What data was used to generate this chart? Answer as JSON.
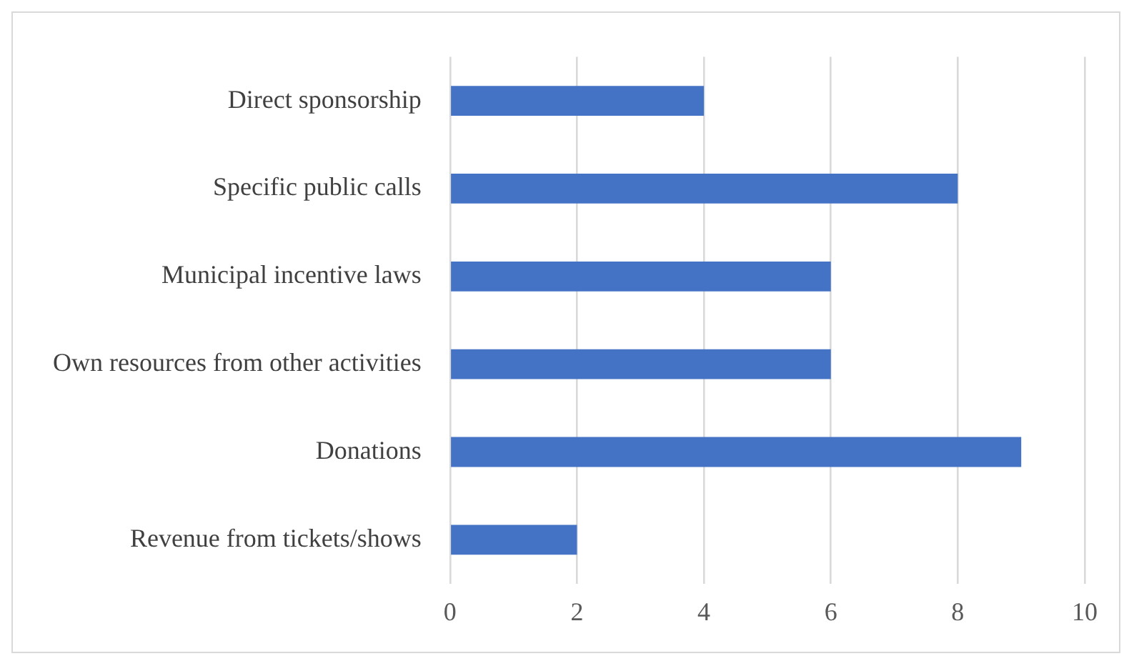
{
  "chart_data": {
    "type": "bar",
    "orientation": "horizontal",
    "categories": [
      "Direct sponsorship",
      "Specific public calls",
      "Municipal incentive laws",
      "Own resources from other activities",
      "Donations",
      "Revenue from tickets/shows"
    ],
    "values": [
      4,
      8,
      6,
      6,
      9,
      2
    ],
    "color": "#4472c4",
    "xlim": [
      0,
      10
    ],
    "xticks": [
      0,
      2,
      4,
      6,
      8,
      10
    ],
    "grid": "x",
    "legend": false
  }
}
